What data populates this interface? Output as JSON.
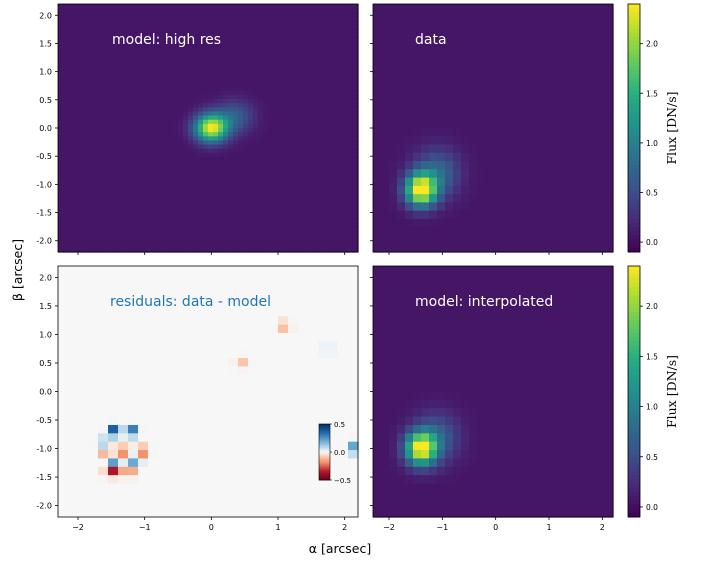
{
  "chart_data": [
    {
      "type": "heatmap",
      "title": "model: high res",
      "xlim": [
        -2.3,
        2.2
      ],
      "ylim": [
        -2.2,
        2.2
      ],
      "x_ticks": [],
      "y_ticks": [
        "-2.0",
        "-1.5",
        "-1.0",
        "-0.5",
        "0.0",
        "0.5",
        "1.0",
        "1.5",
        "2.0"
      ],
      "colormap": "viridis",
      "background_flux": 0.05,
      "sources": [
        {
          "x": 0.0,
          "y": 0.0,
          "peak_flux": 2.3,
          "sigma": 0.17
        },
        {
          "x": 0.35,
          "y": 0.2,
          "peak_flux": 0.6,
          "sigma": 0.2
        }
      ]
    },
    {
      "type": "heatmap",
      "title": "data",
      "xlim": [
        -2.3,
        2.2
      ],
      "ylim": [
        -2.2,
        2.2
      ],
      "x_ticks": [],
      "y_ticks": [],
      "colormap": "viridis",
      "background_flux": 0.05,
      "sources": [
        {
          "x": -1.4,
          "y": -1.1,
          "peak_flux": 2.4,
          "sigma": 0.2
        },
        {
          "x": -1.1,
          "y": -0.8,
          "peak_flux": 0.7,
          "sigma": 0.3
        }
      ]
    },
    {
      "type": "heatmap",
      "title": "residuals: data - model",
      "xlim": [
        -2.3,
        2.2
      ],
      "ylim": [
        -2.2,
        2.2
      ],
      "x_ticks": [
        "−2",
        "−1",
        "0",
        "1",
        "2"
      ],
      "y_ticks": [
        "-2.0",
        "-1.5",
        "-1.0",
        "-0.5",
        "0.0",
        "0.5",
        "1.0",
        "1.5",
        "2.0"
      ],
      "colormap": "RdBu",
      "clim": [
        -0.5,
        0.5
      ],
      "colorbar_ticks": [
        "0.5",
        "0.0",
        "−0.5"
      ],
      "features": [
        {
          "x": -1.45,
          "y": -0.7,
          "value": 0.5
        },
        {
          "x": -1.2,
          "y": -0.7,
          "value": 0.4
        },
        {
          "x": -1.6,
          "y": -0.9,
          "value": 0.2
        },
        {
          "x": -1.55,
          "y": -1.05,
          "value": -0.35
        },
        {
          "x": -1.3,
          "y": -1.05,
          "value": -0.3
        },
        {
          "x": -1.05,
          "y": -1.05,
          "value": -0.3
        },
        {
          "x": -1.45,
          "y": -1.2,
          "value": 0.35
        },
        {
          "x": -1.15,
          "y": -1.2,
          "value": 0.3
        },
        {
          "x": -1.5,
          "y": -1.4,
          "value": -0.4
        },
        {
          "x": -1.25,
          "y": -1.4,
          "value": -0.3
        },
        {
          "x": 1.1,
          "y": 1.15,
          "value": -0.15
        },
        {
          "x": 0.45,
          "y": 0.5,
          "value": -0.1
        },
        {
          "x": 1.75,
          "y": 0.75,
          "value": 0.05
        },
        {
          "x": 2.15,
          "y": -1.0,
          "value": 0.3
        }
      ]
    },
    {
      "type": "heatmap",
      "title": "model: interpolated",
      "xlim": [
        -2.3,
        2.2
      ],
      "ylim": [
        -2.2,
        2.2
      ],
      "x_ticks": [
        "−2",
        "−1",
        "0",
        "1",
        "2"
      ],
      "y_ticks": [],
      "colormap": "viridis",
      "background_flux": 0.05,
      "sources": [
        {
          "x": -1.4,
          "y": -1.0,
          "peak_flux": 2.3,
          "sigma": 0.2
        },
        {
          "x": -1.1,
          "y": -0.8,
          "peak_flux": 0.6,
          "sigma": 0.3
        }
      ]
    }
  ],
  "colorbar": {
    "label": "Flux [DN/s]",
    "ticks": [
      "0.0",
      "0.5",
      "1.0",
      "1.5",
      "2.0"
    ],
    "range": [
      -0.1,
      2.4
    ]
  },
  "axes": {
    "xlabel": "α [arcsec]",
    "ylabel": "β [arcsec]"
  }
}
